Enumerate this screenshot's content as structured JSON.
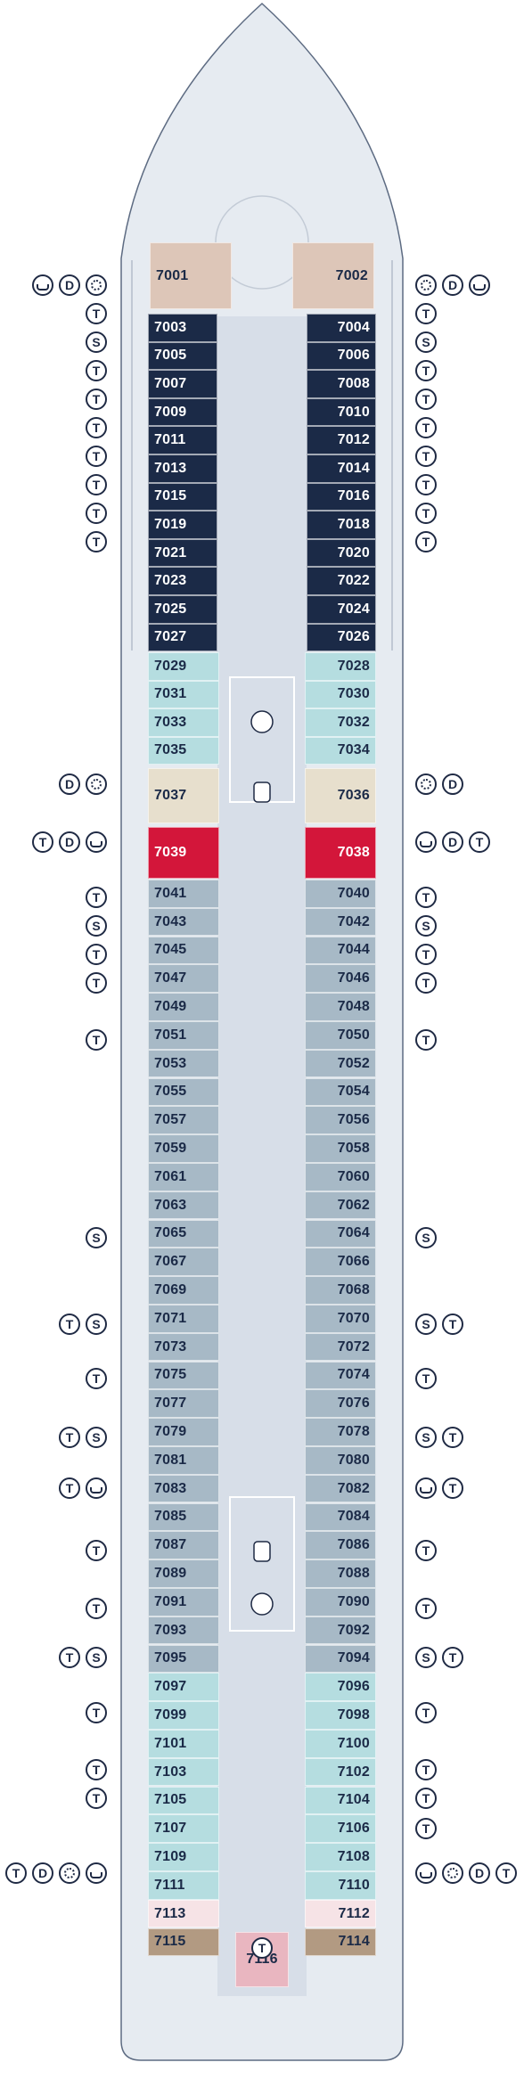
{
  "colors": {
    "hull": "#e6ebf1",
    "hull_stroke": "#5d6b82",
    "corridor": "#d7dee8",
    "navy": "#1b2a47",
    "grey": "#a7b9c6",
    "aqua": "#b5dde0",
    "beige": "#e7dfcd",
    "red": "#d3163a",
    "tan": "#ddc6b8",
    "brown": "#b29a82",
    "pink": "#f6e3e6",
    "rose": "#e9b6c0"
  },
  "legend": {
    "tub": "tub-icon",
    "spa": "spa-icon"
  },
  "cabins": [
    {
      "num": "7001",
      "side": "left",
      "cat": "tan"
    },
    {
      "num": "7002",
      "side": "right",
      "cat": "tan"
    },
    {
      "num": "7003",
      "side": "left",
      "cat": "navy"
    },
    {
      "num": "7004",
      "side": "right",
      "cat": "navy"
    },
    {
      "num": "7005",
      "side": "left",
      "cat": "navy"
    },
    {
      "num": "7006",
      "side": "right",
      "cat": "navy"
    },
    {
      "num": "7007",
      "side": "left",
      "cat": "navy"
    },
    {
      "num": "7008",
      "side": "right",
      "cat": "navy"
    },
    {
      "num": "7009",
      "side": "left",
      "cat": "navy"
    },
    {
      "num": "7010",
      "side": "right",
      "cat": "navy"
    },
    {
      "num": "7011",
      "side": "left",
      "cat": "navy"
    },
    {
      "num": "7012",
      "side": "right",
      "cat": "navy"
    },
    {
      "num": "7013",
      "side": "left",
      "cat": "navy"
    },
    {
      "num": "7014",
      "side": "right",
      "cat": "navy"
    },
    {
      "num": "7015",
      "side": "left",
      "cat": "navy"
    },
    {
      "num": "7016",
      "side": "right",
      "cat": "navy"
    },
    {
      "num": "7019",
      "side": "left",
      "cat": "navy"
    },
    {
      "num": "7018",
      "side": "right",
      "cat": "navy"
    },
    {
      "num": "7021",
      "side": "left",
      "cat": "navy"
    },
    {
      "num": "7020",
      "side": "right",
      "cat": "navy"
    },
    {
      "num": "7023",
      "side": "left",
      "cat": "navy"
    },
    {
      "num": "7022",
      "side": "right",
      "cat": "navy"
    },
    {
      "num": "7025",
      "side": "left",
      "cat": "navy"
    },
    {
      "num": "7024",
      "side": "right",
      "cat": "navy"
    },
    {
      "num": "7027",
      "side": "left",
      "cat": "navy"
    },
    {
      "num": "7026",
      "side": "right",
      "cat": "navy"
    },
    {
      "num": "7029",
      "side": "left",
      "cat": "aqua"
    },
    {
      "num": "7028",
      "side": "right",
      "cat": "aqua"
    },
    {
      "num": "7031",
      "side": "left",
      "cat": "aqua"
    },
    {
      "num": "7030",
      "side": "right",
      "cat": "aqua"
    },
    {
      "num": "7033",
      "side": "left",
      "cat": "aqua"
    },
    {
      "num": "7032",
      "side": "right",
      "cat": "aqua"
    },
    {
      "num": "7035",
      "side": "left",
      "cat": "aqua"
    },
    {
      "num": "7034",
      "side": "right",
      "cat": "aqua"
    },
    {
      "num": "7037",
      "side": "left",
      "cat": "beige"
    },
    {
      "num": "7036",
      "side": "right",
      "cat": "beige"
    },
    {
      "num": "7039",
      "side": "left",
      "cat": "red"
    },
    {
      "num": "7038",
      "side": "right",
      "cat": "red"
    },
    {
      "num": "7041",
      "side": "left",
      "cat": "grey"
    },
    {
      "num": "7040",
      "side": "right",
      "cat": "grey"
    },
    {
      "num": "7043",
      "side": "left",
      "cat": "grey"
    },
    {
      "num": "7042",
      "side": "right",
      "cat": "grey"
    },
    {
      "num": "7045",
      "side": "left",
      "cat": "grey"
    },
    {
      "num": "7044",
      "side": "right",
      "cat": "grey"
    },
    {
      "num": "7047",
      "side": "left",
      "cat": "grey"
    },
    {
      "num": "7046",
      "side": "right",
      "cat": "grey"
    },
    {
      "num": "7049",
      "side": "left",
      "cat": "grey"
    },
    {
      "num": "7048",
      "side": "right",
      "cat": "grey"
    },
    {
      "num": "7051",
      "side": "left",
      "cat": "grey"
    },
    {
      "num": "7050",
      "side": "right",
      "cat": "grey"
    },
    {
      "num": "7053",
      "side": "left",
      "cat": "grey"
    },
    {
      "num": "7052",
      "side": "right",
      "cat": "grey"
    },
    {
      "num": "7055",
      "side": "left",
      "cat": "grey"
    },
    {
      "num": "7054",
      "side": "right",
      "cat": "grey"
    },
    {
      "num": "7057",
      "side": "left",
      "cat": "grey"
    },
    {
      "num": "7056",
      "side": "right",
      "cat": "grey"
    },
    {
      "num": "7059",
      "side": "left",
      "cat": "grey"
    },
    {
      "num": "7058",
      "side": "right",
      "cat": "grey"
    },
    {
      "num": "7061",
      "side": "left",
      "cat": "grey"
    },
    {
      "num": "7060",
      "side": "right",
      "cat": "grey"
    },
    {
      "num": "7063",
      "side": "left",
      "cat": "grey"
    },
    {
      "num": "7062",
      "side": "right",
      "cat": "grey"
    },
    {
      "num": "7065",
      "side": "left",
      "cat": "grey"
    },
    {
      "num": "7064",
      "side": "right",
      "cat": "grey"
    },
    {
      "num": "7067",
      "side": "left",
      "cat": "grey"
    },
    {
      "num": "7066",
      "side": "right",
      "cat": "grey"
    },
    {
      "num": "7069",
      "side": "left",
      "cat": "grey"
    },
    {
      "num": "7068",
      "side": "right",
      "cat": "grey"
    },
    {
      "num": "7071",
      "side": "left",
      "cat": "grey"
    },
    {
      "num": "7070",
      "side": "right",
      "cat": "grey"
    },
    {
      "num": "7073",
      "side": "left",
      "cat": "grey"
    },
    {
      "num": "7072",
      "side": "right",
      "cat": "grey"
    },
    {
      "num": "7075",
      "side": "left",
      "cat": "grey"
    },
    {
      "num": "7074",
      "side": "right",
      "cat": "grey"
    },
    {
      "num": "7077",
      "side": "left",
      "cat": "grey"
    },
    {
      "num": "7076",
      "side": "right",
      "cat": "grey"
    },
    {
      "num": "7079",
      "side": "left",
      "cat": "grey"
    },
    {
      "num": "7078",
      "side": "right",
      "cat": "grey"
    },
    {
      "num": "7081",
      "side": "left",
      "cat": "grey"
    },
    {
      "num": "7080",
      "side": "right",
      "cat": "grey"
    },
    {
      "num": "7083",
      "side": "left",
      "cat": "grey"
    },
    {
      "num": "7082",
      "side": "right",
      "cat": "grey"
    },
    {
      "num": "7085",
      "side": "left",
      "cat": "grey"
    },
    {
      "num": "7084",
      "side": "right",
      "cat": "grey"
    },
    {
      "num": "7087",
      "side": "left",
      "cat": "grey"
    },
    {
      "num": "7086",
      "side": "right",
      "cat": "grey"
    },
    {
      "num": "7089",
      "side": "left",
      "cat": "grey"
    },
    {
      "num": "7088",
      "side": "right",
      "cat": "grey"
    },
    {
      "num": "7091",
      "side": "left",
      "cat": "grey"
    },
    {
      "num": "7090",
      "side": "right",
      "cat": "grey"
    },
    {
      "num": "7093",
      "side": "left",
      "cat": "grey"
    },
    {
      "num": "7092",
      "side": "right",
      "cat": "grey"
    },
    {
      "num": "7095",
      "side": "left",
      "cat": "grey"
    },
    {
      "num": "7094",
      "side": "right",
      "cat": "grey"
    },
    {
      "num": "7097",
      "side": "left",
      "cat": "aqua"
    },
    {
      "num": "7096",
      "side": "right",
      "cat": "aqua"
    },
    {
      "num": "7099",
      "side": "left",
      "cat": "aqua"
    },
    {
      "num": "7098",
      "side": "right",
      "cat": "aqua"
    },
    {
      "num": "7101",
      "side": "left",
      "cat": "aqua"
    },
    {
      "num": "7100",
      "side": "right",
      "cat": "aqua"
    },
    {
      "num": "7103",
      "side": "left",
      "cat": "aqua"
    },
    {
      "num": "7102",
      "side": "right",
      "cat": "aqua"
    },
    {
      "num": "7105",
      "side": "left",
      "cat": "aqua"
    },
    {
      "num": "7104",
      "side": "right",
      "cat": "aqua"
    },
    {
      "num": "7107",
      "side": "left",
      "cat": "aqua"
    },
    {
      "num": "7106",
      "side": "right",
      "cat": "aqua"
    },
    {
      "num": "7109",
      "side": "left",
      "cat": "aqua"
    },
    {
      "num": "7108",
      "side": "right",
      "cat": "aqua"
    },
    {
      "num": "7111",
      "side": "left",
      "cat": "aqua"
    },
    {
      "num": "7110",
      "side": "right",
      "cat": "aqua"
    },
    {
      "num": "7113",
      "side": "left",
      "cat": "pink"
    },
    {
      "num": "7112",
      "side": "right",
      "cat": "pink"
    },
    {
      "num": "7115",
      "side": "left",
      "cat": "brown"
    },
    {
      "num": "7114",
      "side": "right",
      "cat": "brown"
    },
    {
      "num": "7116",
      "side": "center",
      "cat": "rose"
    }
  ],
  "symbol_rows": [
    {
      "left": [
        "tub",
        "D",
        "spa"
      ],
      "right": [
        "spa",
        "D",
        "tub"
      ]
    },
    {
      "left": [
        "T"
      ],
      "right": [
        "T"
      ]
    },
    {
      "left": [
        "S"
      ],
      "right": [
        "S"
      ]
    },
    {
      "left": [
        "T"
      ],
      "right": [
        "T"
      ]
    },
    {
      "left": [
        "T"
      ],
      "right": [
        "T"
      ]
    },
    {
      "left": [
        "T"
      ],
      "right": [
        "T"
      ]
    },
    {
      "left": [
        "T"
      ],
      "right": [
        "T"
      ]
    },
    {
      "left": [
        "T"
      ],
      "right": [
        "T"
      ]
    },
    {
      "left": [
        "T"
      ],
      "right": [
        "T"
      ]
    },
    {
      "left": [
        "T"
      ],
      "right": [
        "T"
      ]
    },
    {
      "left": [
        "D",
        "spa"
      ],
      "right": [
        "spa",
        "D"
      ]
    },
    {
      "left": [
        "T",
        "D",
        "tub"
      ],
      "right": [
        "tub",
        "D",
        "T"
      ]
    },
    {
      "left": [
        "T"
      ],
      "right": [
        "T"
      ]
    },
    {
      "left": [
        "S"
      ],
      "right": [
        "S"
      ]
    },
    {
      "left": [
        "T"
      ],
      "right": [
        "T"
      ]
    },
    {
      "left": [
        "T"
      ],
      "right": [
        "T"
      ]
    },
    {
      "left": [
        "T"
      ],
      "right": [
        "T"
      ]
    },
    {
      "left": [
        "S"
      ],
      "right": [
        "S"
      ]
    },
    {
      "left": [
        "T",
        "S"
      ],
      "right": [
        "S",
        "T"
      ]
    },
    {
      "left": [
        "T"
      ],
      "right": [
        "T"
      ]
    },
    {
      "left": [
        "T",
        "S"
      ],
      "right": [
        "S",
        "T"
      ]
    },
    {
      "left": [
        "T",
        "tub"
      ],
      "right": [
        "tub",
        "T"
      ]
    },
    {
      "left": [
        "T"
      ],
      "right": [
        "T"
      ]
    },
    {
      "left": [
        "T"
      ],
      "right": [
        "T"
      ]
    },
    {
      "left": [
        "T",
        "S"
      ],
      "right": [
        "S",
        "T"
      ]
    },
    {
      "left": [
        "T"
      ],
      "right": [
        "T"
      ]
    },
    {
      "left": [
        "T"
      ],
      "right": [
        "T"
      ]
    },
    {
      "left": [
        "T"
      ],
      "right": [
        "T"
      ]
    },
    {
      "left": [],
      "right": [
        "T"
      ]
    },
    {
      "left": [
        "T",
        "D",
        "spa",
        "tub"
      ],
      "right": [
        "tub",
        "spa",
        "D",
        "T"
      ]
    },
    {
      "left": [],
      "right": [],
      "center": [
        "T"
      ]
    }
  ]
}
